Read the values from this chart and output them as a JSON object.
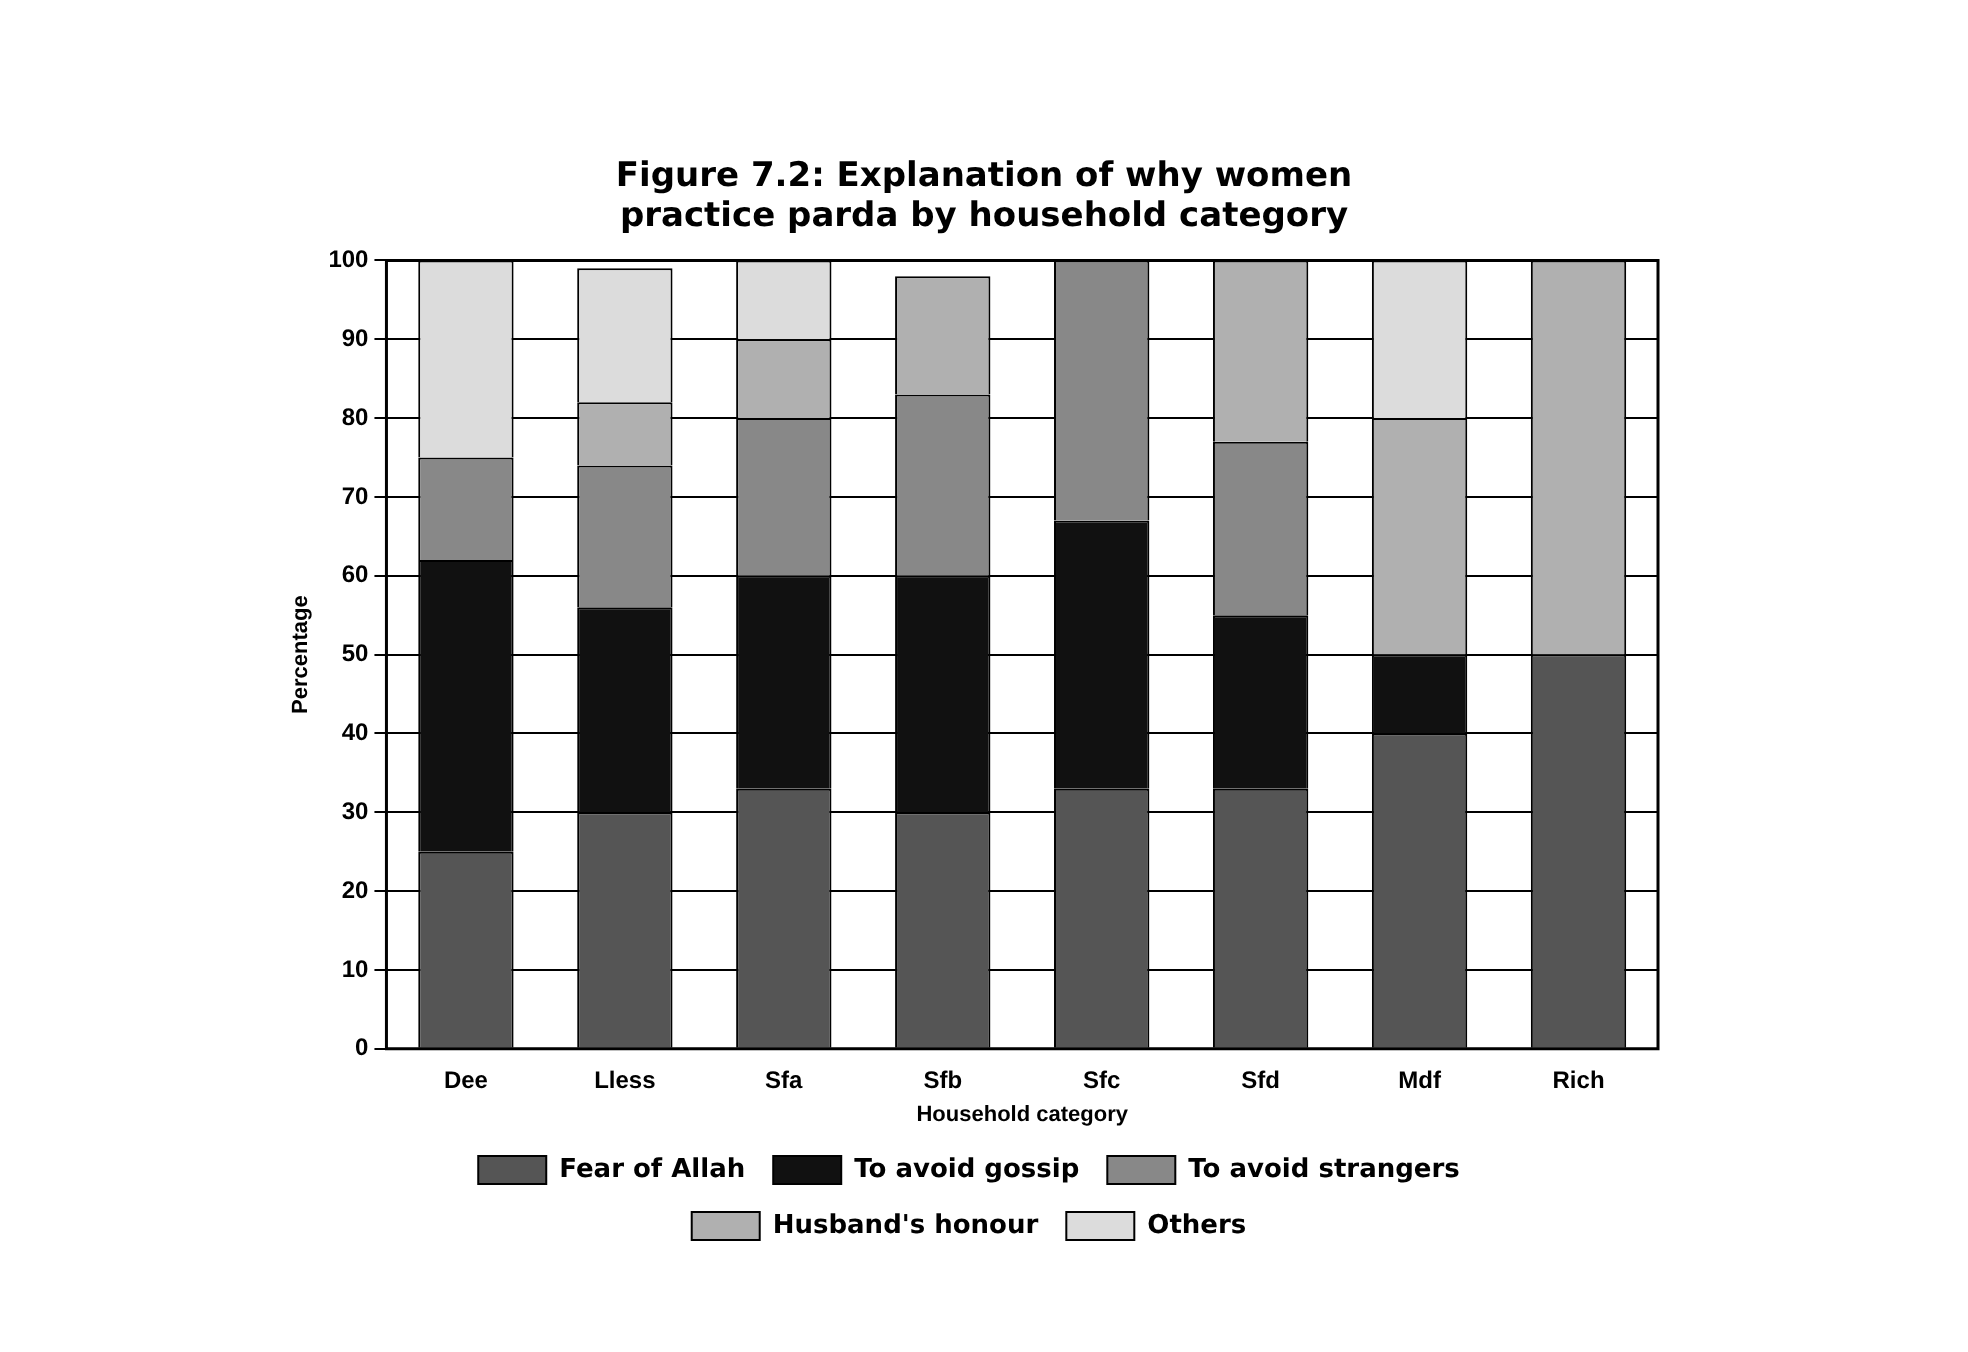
{
  "chart_data": {
    "type": "bar",
    "title": "Figure 7.2: Explanation of why women practice parda by household category",
    "xlabel": "Household category",
    "ylabel": "Percentage",
    "categories": [
      "Dee",
      "Lless",
      "Sfa",
      "Sfb",
      "Sfc",
      "Sfd",
      "Mdf",
      "Rich"
    ],
    "stacked": true,
    "series": [
      {
        "name": "Fear of Allah",
        "color": "#555555",
        "values": [
          25,
          30,
          33,
          30,
          33,
          33,
          40,
          50
        ]
      },
      {
        "name": "To avoid gossip",
        "color": "#111111",
        "values": [
          37,
          26,
          27,
          30,
          34,
          22,
          10,
          0
        ]
      },
      {
        "name": "To avoid strangers",
        "color": "#888888",
        "values": [
          13,
          18,
          20,
          23,
          33,
          22,
          0,
          0
        ]
      },
      {
        "name": "Husband's honour",
        "color": "#b0b0b0",
        "values": [
          0,
          8,
          10,
          15,
          0,
          23,
          30,
          50
        ]
      },
      {
        "name": "Others",
        "color": "#dcdcdc",
        "values": [
          25,
          17,
          10,
          0,
          0,
          0,
          20,
          0
        ]
      }
    ],
    "ylim": [
      0,
      100
    ],
    "yticks": [
      0,
      10,
      20,
      30,
      40,
      50,
      60,
      70,
      80,
      90,
      100
    ],
    "grid": "y",
    "legend": "bottom"
  }
}
